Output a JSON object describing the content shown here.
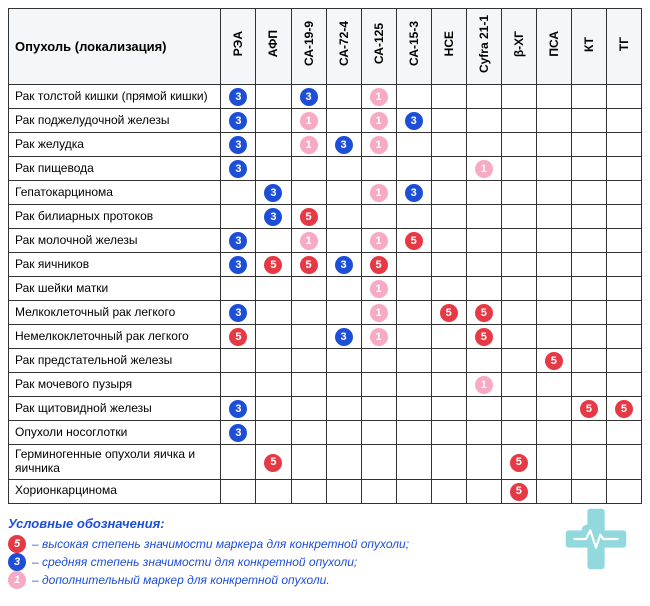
{
  "table": {
    "header": "Опухоль (локализация)",
    "columns": [
      "РЭА",
      "АФП",
      "СА-19-9",
      "СА-72-4",
      "СА-125",
      "СА-15-3",
      "НСЕ",
      "Cyfra 21-1",
      "β-ХГ",
      "ПСА",
      "КТ",
      "ТГ"
    ],
    "rows": [
      {
        "label": "Рак толстой кишки (прямой кишки)",
        "cells": [
          "medium",
          "",
          "medium",
          "",
          "low",
          "",
          "",
          "",
          "",
          "",
          "",
          ""
        ]
      },
      {
        "label": "Рак поджелудочной железы",
        "cells": [
          "medium",
          "",
          "low",
          "",
          "low",
          "medium",
          "",
          "",
          "",
          "",
          "",
          ""
        ]
      },
      {
        "label": "Рак желудка",
        "cells": [
          "medium",
          "",
          "low",
          "medium",
          "low",
          "",
          "",
          "",
          "",
          "",
          "",
          ""
        ]
      },
      {
        "label": "Рак пищевода",
        "cells": [
          "medium",
          "",
          "",
          "",
          "",
          "",
          "",
          "low",
          "",
          "",
          "",
          ""
        ]
      },
      {
        "label": "Гепатокарцинома",
        "cells": [
          "",
          "medium",
          "",
          "",
          "low",
          "medium",
          "",
          "",
          "",
          "",
          "",
          ""
        ]
      },
      {
        "label": "Рак билиарных протоков",
        "cells": [
          "",
          "medium",
          "high",
          "",
          "",
          "",
          "",
          "",
          "",
          "",
          "",
          ""
        ]
      },
      {
        "label": "Рак молочной железы",
        "cells": [
          "medium",
          "",
          "low",
          "",
          "low",
          "high",
          "",
          "",
          "",
          "",
          "",
          ""
        ]
      },
      {
        "label": "Рак яичников",
        "cells": [
          "medium",
          "high",
          "high",
          "medium",
          "high",
          "",
          "",
          "",
          "",
          "",
          "",
          ""
        ]
      },
      {
        "label": "Рак шейки матки",
        "cells": [
          "",
          "",
          "",
          "",
          "low",
          "",
          "",
          "",
          "",
          "",
          "",
          ""
        ]
      },
      {
        "label": "Мелкоклеточный рак легкого",
        "cells": [
          "medium",
          "",
          "",
          "",
          "low",
          "",
          "high",
          "high",
          "",
          "",
          "",
          ""
        ]
      },
      {
        "label": "Немелкоклеточный рак легкого",
        "cells": [
          "high",
          "",
          "",
          "medium",
          "low",
          "",
          "",
          "high",
          "",
          "",
          "",
          ""
        ]
      },
      {
        "label": "Рак предстательной железы",
        "cells": [
          "",
          "",
          "",
          "",
          "",
          "",
          "",
          "",
          "",
          "high",
          "",
          ""
        ]
      },
      {
        "label": "Рак мочевого пузыря",
        "cells": [
          "",
          "",
          "",
          "",
          "",
          "",
          "",
          "low",
          "",
          "",
          "",
          ""
        ]
      },
      {
        "label": "Рак щитовидной железы",
        "cells": [
          "medium",
          "",
          "",
          "",
          "",
          "",
          "",
          "",
          "",
          "",
          "high",
          "high"
        ]
      },
      {
        "label": "Опухоли носоглотки",
        "cells": [
          "medium",
          "",
          "",
          "",
          "",
          "",
          "",
          "",
          "",
          "",
          "",
          ""
        ]
      },
      {
        "label": "Герминогенные опухоли яичка и яичника",
        "cells": [
          "",
          "high",
          "",
          "",
          "",
          "",
          "",
          "",
          "high",
          "",
          "",
          ""
        ]
      },
      {
        "label": "Хорионкарцинома",
        "cells": [
          "",
          "",
          "",
          "",
          "",
          "",
          "",
          "",
          "high",
          "",
          "",
          ""
        ]
      }
    ]
  },
  "marker_styles": {
    "high": {
      "bg": "#e63946",
      "fg": "#ffffff",
      "glyph": "5"
    },
    "medium": {
      "bg": "#1d4ed8",
      "fg": "#ffffff",
      "glyph": "3"
    },
    "low": {
      "bg": "#f8a9c4",
      "fg": "#ffffff",
      "glyph": "1"
    }
  },
  "legend": {
    "title": "Условные обозначения:",
    "items": [
      {
        "level": "high",
        "text": "– высокая степень значимости маркера для конкретной опухоли;"
      },
      {
        "level": "medium",
        "text": "– средняя степень значимости для конкретной опухоли;"
      },
      {
        "level": "low",
        "text": "– дополнительный маркер для конкретной опухоли."
      }
    ]
  },
  "watermark": {
    "cross_color": "#7fd3d8",
    "heart_color": "#7fd3d8",
    "pulse_color": "#ffffff"
  }
}
